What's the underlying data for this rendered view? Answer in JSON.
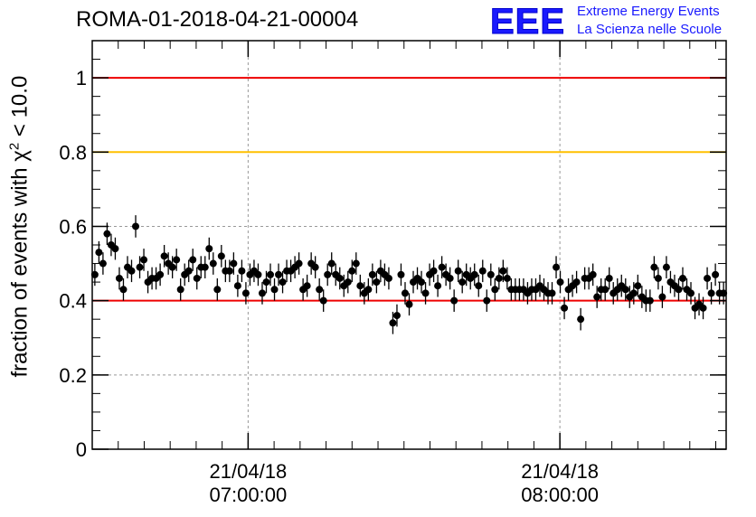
{
  "title": "ROMA-01-2018-04-21-00004",
  "logo": {
    "mark": "EEE",
    "line1": "Extreme Energy Events",
    "line2": "La Scienza nelle Scuole"
  },
  "chart_data": {
    "type": "scatter",
    "title": "ROMA-01-2018-04-21-00004",
    "ylabel": "fraction of events with χ² < 10.0",
    "ylabel_parts": {
      "prefix": "fraction of events with ",
      "symbol": "χ",
      "superscript": "2",
      "suffix": " < 10.0"
    },
    "xlabel": "",
    "x_unit": "minutes after 21/04/18 06:30:00",
    "xlim": [
      0,
      122
    ],
    "ylim": [
      0,
      1.1
    ],
    "yticks": [
      0,
      0.2,
      0.4,
      0.6,
      0.8,
      1
    ],
    "ytick_labels": [
      "0",
      "0.2",
      "0.4",
      "0.6",
      "0.8",
      "1"
    ],
    "xticks": [
      {
        "x": 30,
        "date": "21/04/18",
        "time": "07:00:00"
      },
      {
        "x": 90,
        "date": "21/04/18",
        "time": "08:00:00"
      }
    ],
    "grid": true,
    "reference_lines": [
      {
        "y": 1.0,
        "color": "#ee0000"
      },
      {
        "y": 0.8,
        "color": "#ffc000"
      },
      {
        "y": 0.4,
        "color": "#ee0000"
      }
    ],
    "marker_color": "#000000",
    "error": 0.03,
    "series": [
      {
        "values": [
          0.47,
          0.53,
          0.5,
          0.58,
          0.55,
          0.54,
          0.46,
          0.43,
          0.49,
          0.48,
          0.6,
          0.49,
          0.51,
          0.45,
          0.46,
          0.46,
          0.47,
          0.52,
          0.5,
          0.49,
          0.51,
          0.43,
          0.47,
          0.48,
          0.51,
          0.46,
          0.49,
          0.49,
          0.54,
          0.5,
          0.43,
          0.52,
          0.48,
          0.48,
          0.5,
          0.44,
          0.48,
          0.42,
          0.47,
          0.48,
          0.47,
          0.42,
          0.45,
          0.47,
          0.43,
          0.47,
          0.45,
          0.48,
          0.48,
          0.49,
          0.5,
          0.43,
          0.44,
          0.5,
          0.49,
          0.43,
          0.4,
          0.47,
          0.5,
          0.47,
          0.46,
          0.44,
          0.45,
          0.48,
          0.5,
          0.44,
          0.42,
          0.43,
          0.47,
          0.45,
          0.48,
          0.47,
          0.46,
          0.34,
          0.36,
          0.47,
          0.42,
          0.39,
          0.45,
          0.46,
          0.45,
          0.42,
          0.47,
          0.48,
          0.44,
          0.49,
          0.47,
          0.46,
          0.4,
          0.48,
          0.45,
          0.47,
          0.46,
          0.47,
          0.44,
          0.48,
          0.4,
          0.47,
          0.43,
          0.46,
          0.48,
          0.46,
          0.43,
          0.43,
          0.43,
          0.43,
          0.42,
          0.43,
          0.43,
          0.44,
          0.43,
          0.42,
          0.42,
          0.49,
          0.45,
          0.38,
          0.43,
          0.44,
          0.45,
          0.35,
          0.46,
          0.46,
          0.47,
          0.41,
          0.43,
          0.43,
          0.46,
          0.42,
          0.43,
          0.44,
          0.43,
          0.41,
          0.42,
          0.44,
          0.41,
          0.4,
          0.4,
          0.49,
          0.46,
          0.41,
          0.49,
          0.45,
          0.44,
          0.43,
          0.46,
          0.43,
          0.42,
          0.38,
          0.39,
          0.38,
          0.46,
          0.42,
          0.47,
          0.42,
          0.42
        ]
      }
    ]
  }
}
